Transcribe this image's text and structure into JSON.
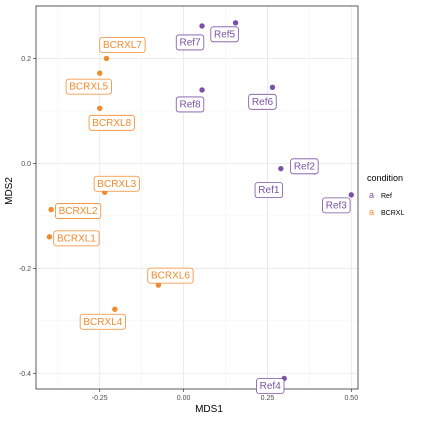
{
  "chart_data": {
    "type": "scatter",
    "title": "",
    "xlabel": "MDS1",
    "ylabel": "MDS2",
    "xlim": [
      -0.44,
      0.52
    ],
    "ylim": [
      -0.43,
      0.3
    ],
    "x_ticks": [
      -0.25,
      0.0,
      0.25,
      0.5
    ],
    "x_tick_labels": [
      "-0.25",
      "0.00",
      "0.25",
      "0.50"
    ],
    "y_ticks": [
      -0.4,
      -0.2,
      0.0,
      0.2
    ],
    "y_tick_labels": [
      "-0.4",
      "-0.2",
      "0.0",
      "0.2"
    ],
    "grid": true,
    "legend": {
      "title": "condition",
      "placement": "right",
      "key_glyph": "a",
      "entries": [
        {
          "label": "Ref",
          "color": "#7b52a6"
        },
        {
          "label": "BCRXL",
          "color": "#f28a2e"
        }
      ]
    },
    "series": [
      {
        "name": "Ref",
        "color": "#7b52a6",
        "points": [
          {
            "label": "Ref7",
            "x": 0.055,
            "y": 0.262
          },
          {
            "label": "Ref5",
            "x": 0.155,
            "y": 0.268
          },
          {
            "label": "Ref8",
            "x": 0.055,
            "y": 0.14
          },
          {
            "label": "Ref6",
            "x": 0.265,
            "y": 0.145
          },
          {
            "label": "Ref2",
            "x": 0.39,
            "y": -0.016
          },
          {
            "label": "Ref1",
            "x": 0.29,
            "y": -0.01
          },
          {
            "label": "Ref3",
            "x": 0.5,
            "y": -0.06
          },
          {
            "label": "Ref4",
            "x": 0.3,
            "y": -0.41
          }
        ]
      },
      {
        "name": "BCRXL",
        "color": "#f28a2e",
        "points": [
          {
            "label": "BCRXL7",
            "x": -0.23,
            "y": 0.2
          },
          {
            "label": "BCRXL5",
            "x": -0.25,
            "y": 0.172
          },
          {
            "label": "BCRXL8",
            "x": -0.25,
            "y": 0.105
          },
          {
            "label": "BCRXL3",
            "x": -0.235,
            "y": -0.055
          },
          {
            "label": "BCRXL2",
            "x": -0.395,
            "y": -0.088
          },
          {
            "label": "BCRXL1",
            "x": -0.4,
            "y": -0.14
          },
          {
            "label": "BCRXL6",
            "x": -0.075,
            "y": -0.232
          },
          {
            "label": "BCRXL4",
            "x": -0.205,
            "y": -0.278
          }
        ]
      }
    ]
  }
}
